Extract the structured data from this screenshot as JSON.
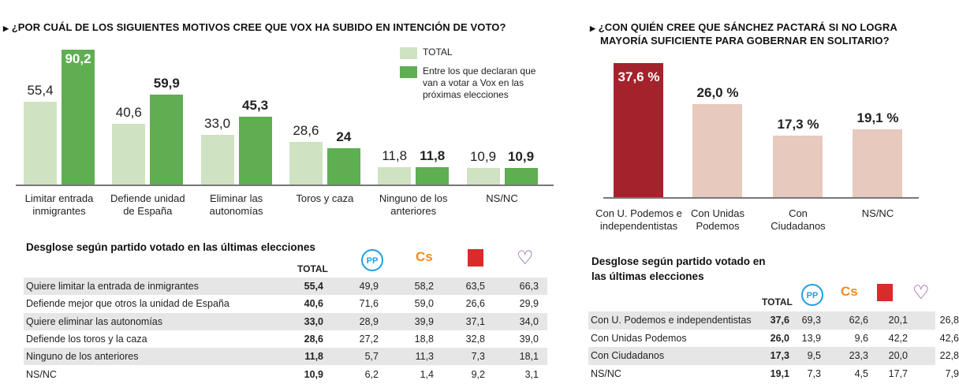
{
  "left": {
    "title": "¿POR CUÁL DE LOS SIGUIENTES MOTIVOS CREE QUE VOX HA SUBIDO EN INTENCIÓN DE VOTO?",
    "table_title": "Desglose según partido votado en las últimas elecciones",
    "total_label": "TOTAL",
    "table_rows": [
      {
        "label": "Quiere limitar la entrada de inmigrantes",
        "values": [
          "55,4",
          "49,9",
          "58,2",
          "63,5",
          "66,3"
        ]
      },
      {
        "label": "Defiende mejor que otros la unidad de España",
        "values": [
          "40,6",
          "71,6",
          "59,0",
          "26,6",
          "29,9"
        ]
      },
      {
        "label": "Quiere eliminar las autonomías",
        "values": [
          "33,0",
          "28,9",
          "39,9",
          "37,1",
          "34,0"
        ]
      },
      {
        "label": "Defiende los toros y la caza",
        "values": [
          "28,6",
          "27,2",
          "18,8",
          "32,8",
          "39,0"
        ]
      },
      {
        "label": "Ninguno de los anteriores",
        "values": [
          "11,8",
          "5,7",
          "11,3",
          "7,3",
          "18,1"
        ]
      },
      {
        "label": "NS/NC",
        "values": [
          "10,9",
          "6,2",
          "1,4",
          "9,2",
          "3,1"
        ]
      }
    ]
  },
  "right": {
    "title_line1": "¿CON QUIÉN CREE QUE SÁNCHEZ PACTARÁ SI NO LOGRA",
    "title_line2": "MAYORÍA SUFICIENTE PARA GOBERNAR EN SOLITARIO?",
    "table_title_line1": "Desglose según partido votado en",
    "table_title_line2": "las últimas elecciones",
    "total_label": "TOTAL",
    "table_rows": [
      {
        "label": "Con U. Podemos e independentistas",
        "values": [
          "37,6",
          "69,3",
          "62,6",
          "20,1",
          "26,8"
        ]
      },
      {
        "label": "Con Unidas Podemos",
        "values": [
          "26,0",
          "13,9",
          "9,6",
          "42,2",
          "42,6"
        ]
      },
      {
        "label": "Con Ciudadanos",
        "values": [
          "17,3",
          "9,5",
          "23,3",
          "20,0",
          "22,8"
        ]
      },
      {
        "label": "NS/NC",
        "values": [
          "19,1",
          "7,3",
          "4,5",
          "17,7",
          "7,9"
        ]
      }
    ]
  },
  "party_logos": [
    {
      "name": "pp-logo",
      "text": "PP",
      "color": "#1ea0e0"
    },
    {
      "name": "cs-logo",
      "text": "Cs",
      "color": "#f08a24"
    },
    {
      "name": "psoe-logo",
      "text": "",
      "color": "#d92b2b"
    },
    {
      "name": "podemos-logo",
      "text": "",
      "color": "#7a3a8a"
    }
  ],
  "chart_data": [
    {
      "type": "bar",
      "title": "¿POR CUÁL DE LOS SIGUIENTES MOTIVOS CREE QUE VOX HA SUBIDO EN INTENCIÓN DE VOTO?",
      "categories": [
        "Limitar entrada inmigrantes",
        "Defiende unidad de España",
        "Eliminar las autonomías",
        "Toros y caza",
        "Ninguno de los anteriores",
        "NS/NC"
      ],
      "category_lines": [
        [
          "Limitar entrada",
          "inmigrantes"
        ],
        [
          "Defiende unidad",
          "de España"
        ],
        [
          "Eliminar las",
          "autonomías"
        ],
        [
          "Toros y caza"
        ],
        [
          "Ninguno de los",
          "anteriores"
        ],
        [
          "NS/NC"
        ]
      ],
      "series": [
        {
          "name": "TOTAL",
          "values": [
            55.4,
            40.6,
            33.0,
            28.6,
            11.8,
            10.9
          ],
          "labels": [
            "55,4",
            "40,6",
            "33,0",
            "28,6",
            "11,8",
            "10,9"
          ],
          "color": "#cfe3c3"
        },
        {
          "name": "Entre los que declaran que van a votar a Vox en las próximas elecciones",
          "legend_lines": [
            "Entre los que declaran que",
            "van a votar a Vox en las",
            "próximas elecciones"
          ],
          "values": [
            90.2,
            59.9,
            45.3,
            24,
            11.8,
            10.9
          ],
          "labels": [
            "90,2",
            "59,9",
            "45,3",
            "24",
            "11,8",
            "10,9"
          ],
          "color": "#5fae52"
        }
      ],
      "legend": "top-right",
      "grid": false
    },
    {
      "type": "bar",
      "title": "¿CON QUIÉN CREE QUE SÁNCHEZ PACTARÁ SI NO LOGRA MAYORÍA SUFICIENTE PARA GOBERNAR EN SOLITARIO?",
      "categories": [
        "Con U. Podemos e independentistas",
        "Con Unidas Podemos",
        "Con Ciudadanos",
        "NS/NC"
      ],
      "category_lines": [
        [
          "Con U. Podemos e",
          "independentistas"
        ],
        [
          "Con Unidas",
          "Podemos"
        ],
        [
          "Con",
          "Ciudadanos"
        ],
        [
          "NS/NC"
        ]
      ],
      "values": [
        37.6,
        26.0,
        17.3,
        19.1
      ],
      "labels": [
        "37,6 %",
        "26,0 %",
        "17,3 %",
        "19,1 %"
      ],
      "colors": [
        "#a3222c",
        "#e8c9bd",
        "#e8c9bd",
        "#e8c9bd"
      ],
      "grid": false
    }
  ]
}
